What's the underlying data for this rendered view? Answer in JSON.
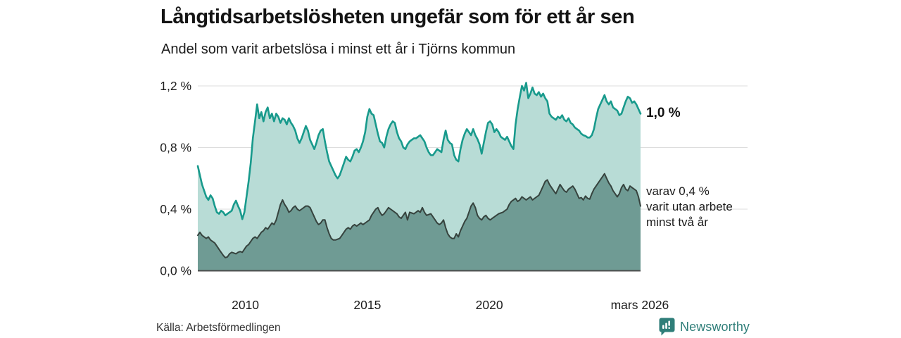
{
  "header": {
    "title": "Långtidsarbetslösheten ungefär som för ett år sen",
    "subtitle": "Andel som varit arbetslösa i minst ett år i Tjörns kommun"
  },
  "annotations": {
    "latest_total_label": "1,0 %",
    "secondary_lines": [
      "varav 0,4 %",
      "varit utan arbete",
      "minst två år"
    ]
  },
  "footer": {
    "source": "Källa: Arbetsförmedlingen",
    "brand_name": "Newsworthy"
  },
  "colors": {
    "long_line": "#189a8c",
    "long_fill": "#b8dcd6",
    "verylong_line": "#36433e",
    "verylong_fill": "#6f9b94",
    "grid": "#dddddd",
    "axis": "#4d4d4d",
    "tick_text": "#1d1d1d",
    "brand": "#2f7e79"
  },
  "chart_data": {
    "type": "area",
    "title": "Långtidsarbetslösheten ungefär som för ett år sen",
    "subtitle": "Andel som varit arbetslösa i minst ett år i Tjörns kommun",
    "unit": "%",
    "x_range": [
      2008.05,
      2026.2
    ],
    "ylim": [
      0,
      1.26
    ],
    "grid": "horizontal",
    "y_ticks": [
      {
        "label": "1,2 %",
        "value": 1.2
      },
      {
        "label": "0,8 %",
        "value": 0.8
      },
      {
        "label": "0,4 %",
        "value": 0.4
      },
      {
        "label": "0,0 %",
        "value": 0.0
      }
    ],
    "x_ticks": [
      {
        "label": "2010",
        "t": 2010
      },
      {
        "label": "2015",
        "t": 2015
      },
      {
        "label": "2020",
        "t": 2020
      },
      {
        "label": "mars 2026",
        "t": 2026.17
      }
    ],
    "series": [
      {
        "name": "Andel arbetslösa minst ett år",
        "latest_value": 1.0,
        "values": [
          0.68,
          0.62,
          0.56,
          0.52,
          0.48,
          0.46,
          0.49,
          0.47,
          0.42,
          0.38,
          0.37,
          0.39,
          0.38,
          0.36,
          0.37,
          0.38,
          0.39,
          0.43,
          0.455,
          0.42,
          0.39,
          0.335,
          0.38,
          0.48,
          0.58,
          0.7,
          0.86,
          0.97,
          1.08,
          0.99,
          1.03,
          0.97,
          1.03,
          1.06,
          0.99,
          1.02,
          0.97,
          1.02,
          1.0,
          0.96,
          0.99,
          0.98,
          0.95,
          0.99,
          0.96,
          0.94,
          0.91,
          0.86,
          0.83,
          0.86,
          0.9,
          0.94,
          0.91,
          0.85,
          0.82,
          0.79,
          0.83,
          0.88,
          0.91,
          0.92,
          0.84,
          0.77,
          0.71,
          0.68,
          0.65,
          0.62,
          0.6,
          0.62,
          0.66,
          0.7,
          0.74,
          0.72,
          0.71,
          0.74,
          0.78,
          0.79,
          0.77,
          0.8,
          0.84,
          0.9,
          1.0,
          1.05,
          1.02,
          1.01,
          0.95,
          0.89,
          0.84,
          0.83,
          0.8,
          0.87,
          0.92,
          0.95,
          0.97,
          0.96,
          0.9,
          0.86,
          0.84,
          0.8,
          0.79,
          0.82,
          0.84,
          0.85,
          0.86,
          0.86,
          0.87,
          0.88,
          0.86,
          0.84,
          0.8,
          0.77,
          0.75,
          0.75,
          0.77,
          0.79,
          0.78,
          0.77,
          0.85,
          0.91,
          0.85,
          0.83,
          0.82,
          0.75,
          0.72,
          0.71,
          0.79,
          0.85,
          0.89,
          0.92,
          0.9,
          0.88,
          0.92,
          0.88,
          0.855,
          0.82,
          0.76,
          0.83,
          0.9,
          0.96,
          0.97,
          0.95,
          0.9,
          0.92,
          0.9,
          0.87,
          0.86,
          0.85,
          0.87,
          0.84,
          0.81,
          0.79,
          0.95,
          1.05,
          1.13,
          1.2,
          1.17,
          1.22,
          1.12,
          1.15,
          1.19,
          1.15,
          1.14,
          1.16,
          1.13,
          1.15,
          1.12,
          1.1,
          1.02,
          1.0,
          0.99,
          0.98,
          1.0,
          0.99,
          1.01,
          0.98,
          0.97,
          0.99,
          0.96,
          0.95,
          0.93,
          0.92,
          0.91,
          0.89,
          0.88,
          0.875,
          0.865,
          0.865,
          0.88,
          0.92,
          0.99,
          1.05,
          1.08,
          1.11,
          1.14,
          1.1,
          1.08,
          1.1,
          1.06,
          1.05,
          1.04,
          1.01,
          1.02,
          1.06,
          1.1,
          1.13,
          1.12,
          1.09,
          1.1,
          1.08,
          1.05,
          1.02
        ]
      },
      {
        "name": "varav utan arbete minst två år",
        "latest_value": 0.4,
        "values": [
          0.23,
          0.25,
          0.23,
          0.22,
          0.21,
          0.22,
          0.2,
          0.19,
          0.18,
          0.16,
          0.14,
          0.12,
          0.1,
          0.085,
          0.09,
          0.11,
          0.12,
          0.115,
          0.11,
          0.12,
          0.125,
          0.12,
          0.14,
          0.16,
          0.17,
          0.19,
          0.21,
          0.22,
          0.21,
          0.23,
          0.25,
          0.26,
          0.28,
          0.27,
          0.29,
          0.31,
          0.3,
          0.33,
          0.38,
          0.43,
          0.46,
          0.43,
          0.41,
          0.38,
          0.39,
          0.41,
          0.42,
          0.4,
          0.39,
          0.4,
          0.41,
          0.42,
          0.42,
          0.41,
          0.38,
          0.35,
          0.32,
          0.3,
          0.31,
          0.33,
          0.33,
          0.28,
          0.24,
          0.21,
          0.2,
          0.2,
          0.205,
          0.21,
          0.23,
          0.25,
          0.27,
          0.28,
          0.27,
          0.29,
          0.3,
          0.29,
          0.3,
          0.31,
          0.3,
          0.31,
          0.32,
          0.33,
          0.36,
          0.38,
          0.4,
          0.41,
          0.38,
          0.36,
          0.37,
          0.39,
          0.41,
          0.4,
          0.39,
          0.38,
          0.37,
          0.35,
          0.34,
          0.36,
          0.38,
          0.33,
          0.38,
          0.375,
          0.37,
          0.38,
          0.39,
          0.38,
          0.41,
          0.38,
          0.36,
          0.365,
          0.37,
          0.35,
          0.33,
          0.31,
          0.3,
          0.31,
          0.33,
          0.28,
          0.24,
          0.22,
          0.21,
          0.21,
          0.24,
          0.22,
          0.26,
          0.29,
          0.32,
          0.34,
          0.38,
          0.42,
          0.44,
          0.41,
          0.36,
          0.34,
          0.33,
          0.35,
          0.36,
          0.34,
          0.33,
          0.34,
          0.35,
          0.36,
          0.37,
          0.375,
          0.38,
          0.39,
          0.4,
          0.43,
          0.45,
          0.46,
          0.47,
          0.45,
          0.46,
          0.48,
          0.47,
          0.46,
          0.47,
          0.48,
          0.46,
          0.47,
          0.48,
          0.49,
          0.52,
          0.55,
          0.58,
          0.59,
          0.56,
          0.54,
          0.52,
          0.5,
          0.53,
          0.56,
          0.54,
          0.52,
          0.51,
          0.53,
          0.54,
          0.55,
          0.53,
          0.5,
          0.47,
          0.475,
          0.46,
          0.485,
          0.47,
          0.465,
          0.5,
          0.53,
          0.55,
          0.57,
          0.59,
          0.61,
          0.63,
          0.6,
          0.57,
          0.55,
          0.52,
          0.5,
          0.48,
          0.5,
          0.54,
          0.56,
          0.53,
          0.52,
          0.55,
          0.54,
          0.53,
          0.52,
          0.48,
          0.42
        ]
      }
    ]
  }
}
